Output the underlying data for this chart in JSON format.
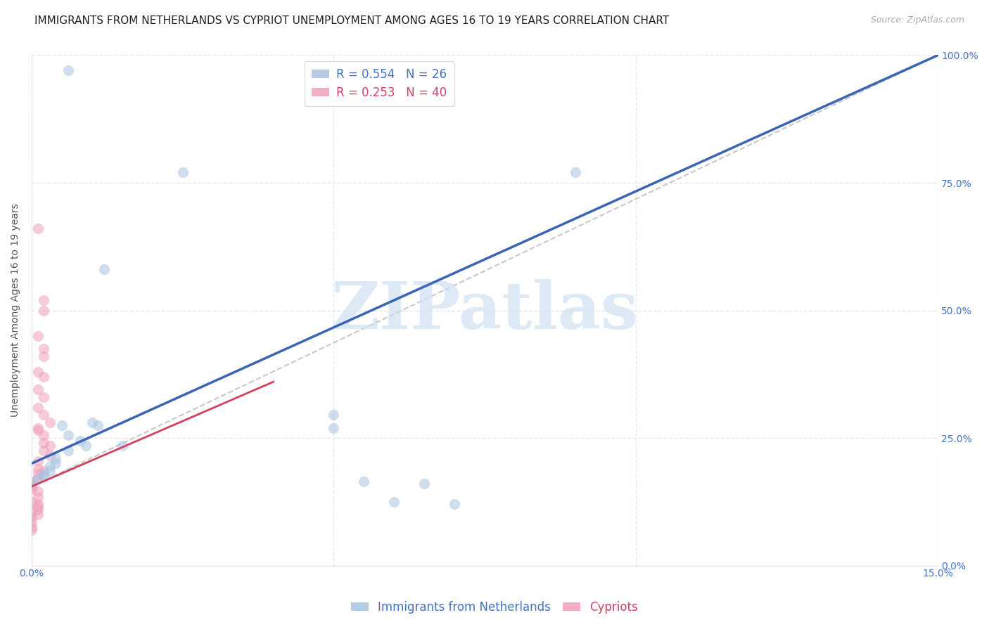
{
  "title": "IMMIGRANTS FROM NETHERLANDS VS CYPRIOT UNEMPLOYMENT AMONG AGES 16 TO 19 YEARS CORRELATION CHART",
  "source": "Source: ZipAtlas.com",
  "ylabel_label": "Unemployment Among Ages 16 to 19 years",
  "xlim": [
    0.0,
    0.15
  ],
  "ylim": [
    0.0,
    1.0
  ],
  "watermark": "ZIPatlas",
  "legend_blue_r": "R = 0.554",
  "legend_blue_n": "N = 26",
  "legend_pink_r": "R = 0.253",
  "legend_pink_n": "N = 40",
  "legend_blue_label": "Immigrants from Netherlands",
  "legend_pink_label": "Cypriots",
  "blue_color": "#a8c4e0",
  "pink_color": "#f0a0b8",
  "trendline_blue_color": "#3a65b5",
  "trendline_pink_color": "#d44060",
  "trendline_gray_color": "#c8c8c8",
  "blue_points": [
    [
      0.006,
      0.97
    ],
    [
      0.025,
      0.77
    ],
    [
      0.012,
      0.58
    ],
    [
      0.09,
      0.77
    ],
    [
      0.01,
      0.28
    ],
    [
      0.005,
      0.275
    ],
    [
      0.006,
      0.255
    ],
    [
      0.008,
      0.245
    ],
    [
      0.009,
      0.235
    ],
    [
      0.006,
      0.225
    ],
    [
      0.015,
      0.235
    ],
    [
      0.011,
      0.275
    ],
    [
      0.05,
      0.295
    ],
    [
      0.05,
      0.27
    ],
    [
      0.055,
      0.165
    ],
    [
      0.065,
      0.16
    ],
    [
      0.06,
      0.125
    ],
    [
      0.07,
      0.12
    ],
    [
      0.004,
      0.21
    ],
    [
      0.004,
      0.2
    ],
    [
      0.003,
      0.195
    ],
    [
      0.003,
      0.185
    ],
    [
      0.002,
      0.18
    ],
    [
      0.002,
      0.175
    ],
    [
      0.001,
      0.17
    ],
    [
      0.0,
      0.165
    ]
  ],
  "pink_points": [
    [
      0.001,
      0.66
    ],
    [
      0.002,
      0.52
    ],
    [
      0.002,
      0.5
    ],
    [
      0.001,
      0.45
    ],
    [
      0.002,
      0.425
    ],
    [
      0.002,
      0.41
    ],
    [
      0.001,
      0.38
    ],
    [
      0.002,
      0.37
    ],
    [
      0.001,
      0.345
    ],
    [
      0.002,
      0.33
    ],
    [
      0.001,
      0.31
    ],
    [
      0.002,
      0.295
    ],
    [
      0.003,
      0.28
    ],
    [
      0.001,
      0.27
    ],
    [
      0.001,
      0.265
    ],
    [
      0.002,
      0.255
    ],
    [
      0.002,
      0.24
    ],
    [
      0.003,
      0.235
    ],
    [
      0.002,
      0.225
    ],
    [
      0.003,
      0.215
    ],
    [
      0.001,
      0.205
    ],
    [
      0.001,
      0.19
    ],
    [
      0.002,
      0.185
    ],
    [
      0.001,
      0.18
    ],
    [
      0.001,
      0.17
    ],
    [
      0.0,
      0.16
    ],
    [
      0.0,
      0.155
    ],
    [
      0.0,
      0.15
    ],
    [
      0.001,
      0.145
    ],
    [
      0.001,
      0.135
    ],
    [
      0.0,
      0.125
    ],
    [
      0.001,
      0.12
    ],
    [
      0.001,
      0.115
    ],
    [
      0.001,
      0.11
    ],
    [
      0.0,
      0.105
    ],
    [
      0.001,
      0.1
    ],
    [
      0.0,
      0.095
    ],
    [
      0.0,
      0.085
    ],
    [
      0.0,
      0.075
    ],
    [
      0.0,
      0.07
    ]
  ],
  "blue_trendline": [
    [
      0.0,
      0.2
    ],
    [
      0.15,
      1.0
    ]
  ],
  "pink_trendline": [
    [
      0.0,
      0.155
    ],
    [
      0.04,
      0.36
    ]
  ],
  "gray_trendline": [
    [
      0.0,
      0.155
    ],
    [
      0.15,
      1.0
    ]
  ],
  "background_color": "#ffffff",
  "grid_color": "#e0e4ea",
  "title_fontsize": 11,
  "source_fontsize": 9,
  "axis_label_fontsize": 10,
  "tick_fontsize": 10,
  "legend_fontsize": 12,
  "point_size": 120,
  "point_alpha": 0.55
}
